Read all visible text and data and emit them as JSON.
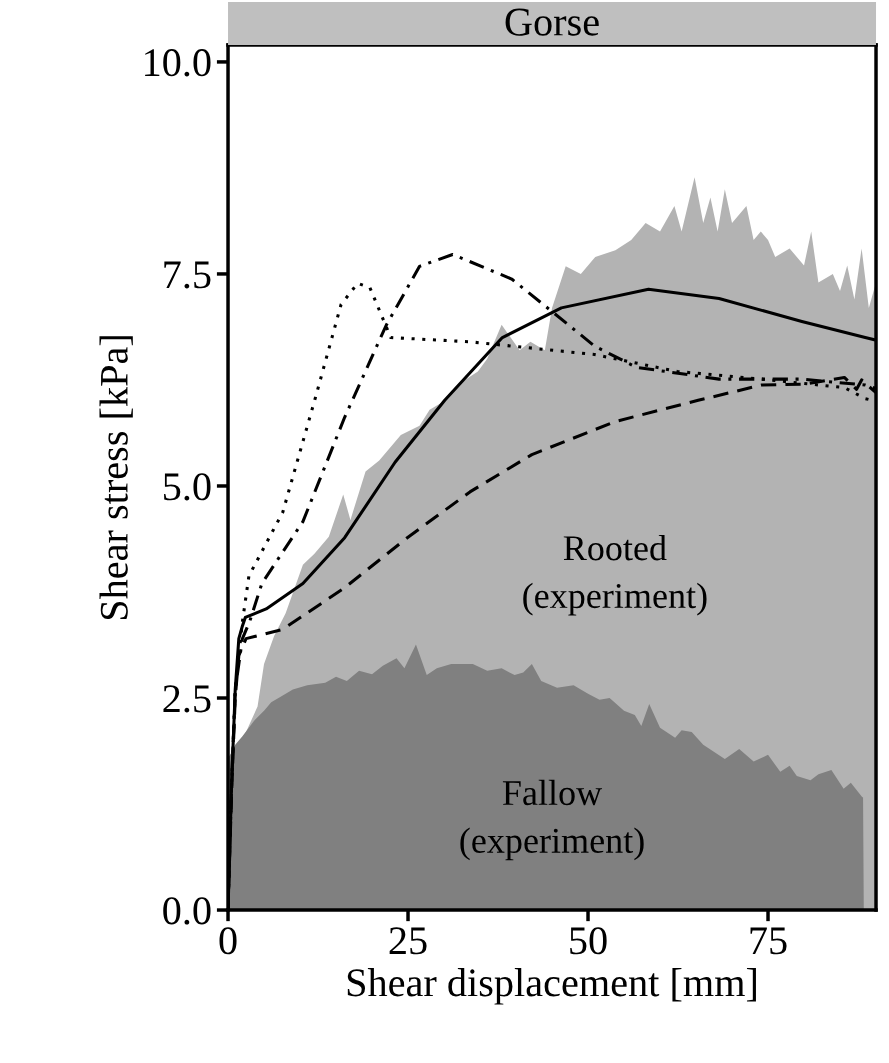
{
  "chart_data": {
    "type": "line",
    "title": "Gorse",
    "xlabel": "Shear displacement [mm]",
    "ylabel": "Shear stress [kPa]",
    "xlim": [
      0,
      90
    ],
    "xticks": [
      0,
      25,
      50,
      75
    ],
    "ylim": [
      0,
      10.2
    ],
    "yticks": [
      {
        "value": 0,
        "label": "0.0"
      },
      {
        "value": 2.5,
        "label": "2.5"
      },
      {
        "value": 5,
        "label": "5.0"
      },
      {
        "value": 7.5,
        "label": "7.5"
      },
      {
        "value": 10,
        "label": "10.0"
      }
    ],
    "grid": false,
    "marker": "none",
    "series": [
      {
        "type": "area",
        "color": "#b3b3b3",
        "x": [
          0,
          1,
          2.5,
          4.1,
          5,
          6.4,
          8,
          10.4,
          12,
          14,
          16,
          17,
          19.1,
          21,
          23,
          24,
          26.6,
          28,
          30,
          32,
          34.7,
          36,
          38,
          40.5,
          42,
          44,
          45,
          46.9,
          49,
          51,
          53.8,
          56,
          58,
          60,
          62,
          63,
          64.8,
          66,
          67,
          68,
          69,
          70,
          72,
          73,
          74,
          75,
          76,
          78,
          80,
          81,
          82,
          84,
          85,
          86,
          87,
          88,
          89,
          90
        ],
        "values": [
          1.8,
          1.9,
          2.1,
          2.4,
          2.9,
          3.23,
          3.5,
          4.07,
          4.2,
          4.4,
          4.9,
          4.6,
          5.17,
          5.3,
          5.5,
          5.6,
          5.71,
          5.9,
          6.0,
          6.2,
          6.35,
          6.5,
          6.9,
          6.6,
          6.7,
          6.6,
          7.1,
          7.59,
          7.5,
          7.7,
          7.78,
          7.9,
          8.1,
          8.0,
          8.3,
          8.0,
          8.64,
          8.1,
          8.4,
          8.0,
          8.5,
          8.1,
          8.3,
          7.9,
          8.0,
          7.9,
          7.7,
          7.8,
          7.6,
          8.0,
          7.4,
          7.5,
          7.3,
          7.6,
          7.2,
          7.8,
          7.1,
          7.4
        ]
      },
      {
        "type": "area",
        "color": "#808080",
        "x": [
          0,
          1,
          2,
          3.6,
          5,
          6,
          7.6,
          9,
          11,
          13.5,
          15,
          16.5,
          18.2,
          20,
          21.5,
          23.4,
          24.5,
          26.1,
          27.6,
          29,
          31,
          34,
          36,
          38,
          39.8,
          41,
          42.2,
          43.5,
          45.7,
          48,
          50,
          51.6,
          53,
          55,
          56.5,
          57.4,
          58.5,
          60,
          62.1,
          63,
          64.4,
          66,
          69,
          71,
          73,
          75,
          76.7,
          78,
          79,
          80.9,
          82,
          83.8,
          85.5,
          86.5,
          88.1,
          88.2,
          88.3
        ],
        "values": [
          1.78,
          1.95,
          2.05,
          2.23,
          2.35,
          2.45,
          2.53,
          2.6,
          2.65,
          2.68,
          2.75,
          2.7,
          2.82,
          2.78,
          2.88,
          2.97,
          2.85,
          3.13,
          2.77,
          2.85,
          2.9,
          2.9,
          2.82,
          2.85,
          2.77,
          2.8,
          2.9,
          2.7,
          2.62,
          2.65,
          2.55,
          2.48,
          2.5,
          2.35,
          2.3,
          2.17,
          2.43,
          2.15,
          2.03,
          2.12,
          2.1,
          1.95,
          1.78,
          1.9,
          1.75,
          1.83,
          1.63,
          1.7,
          1.58,
          1.53,
          1.6,
          1.65,
          1.43,
          1.5,
          1.33,
          1.33,
          0
        ]
      },
      {
        "line_style": "solid",
        "color": "#000000",
        "x": [
          0,
          0.5,
          1,
          1.5,
          2,
          2.4,
          5.3,
          10.4,
          16.2,
          23.2,
          30.1,
          38.1,
          46.3,
          58.4,
          68.2,
          79.7,
          88.5,
          90
        ],
        "values": [
          0,
          1.5,
          2.6,
          3.2,
          3.35,
          3.45,
          3.55,
          3.85,
          4.39,
          5.28,
          6.01,
          6.75,
          7.1,
          7.32,
          7.21,
          6.94,
          6.75,
          6.72
        ]
      },
      {
        "line_style": "dashed",
        "color": "#000000",
        "x": [
          0,
          0.5,
          1,
          1.5,
          2.5,
          7.6,
          16.2,
          24.9,
          33.6,
          42.2,
          53.8,
          65.3,
          74.1,
          80,
          85.6,
          87.3,
          88,
          90
        ],
        "values": [
          0,
          1.4,
          2.5,
          3.0,
          3.2,
          3.31,
          3.8,
          4.39,
          4.93,
          5.37,
          5.76,
          6.01,
          6.19,
          6.2,
          6.28,
          6.14,
          6.25,
          6.1
        ]
      },
      {
        "line_style": "dotted",
        "color": "#000000",
        "x": [
          0,
          0.5,
          1,
          2,
          2.9,
          7.6,
          12.2,
          15.7,
          18,
          19.7,
          22.6,
          33.6,
          50.9,
          62.4,
          74.1,
          85.6,
          88.5,
          90
        ],
        "values": [
          0,
          1.5,
          2.6,
          3.4,
          3.94,
          4.69,
          6.06,
          7.14,
          7.39,
          7.34,
          6.75,
          6.7,
          6.55,
          6.35,
          6.26,
          6.16,
          6.03,
          6.0
        ]
      },
      {
        "line_style": "dashdot",
        "color": "#000000",
        "x": [
          0,
          0.5,
          1,
          2,
          3,
          4.7,
          10.4,
          16.2,
          22,
          26.6,
          31.2,
          39.4,
          45.1,
          50.9,
          56.7,
          68.2,
          79.7,
          88.5,
          90
        ],
        "values": [
          0,
          1.5,
          2.6,
          3.2,
          3.4,
          3.85,
          4.58,
          5.81,
          6.9,
          7.59,
          7.73,
          7.44,
          7.05,
          6.65,
          6.4,
          6.26,
          6.26,
          6.19,
          6.15
        ]
      }
    ],
    "annotations": [
      "Rooted\n(experiment)",
      "Fallow\n(experiment)"
    ]
  }
}
